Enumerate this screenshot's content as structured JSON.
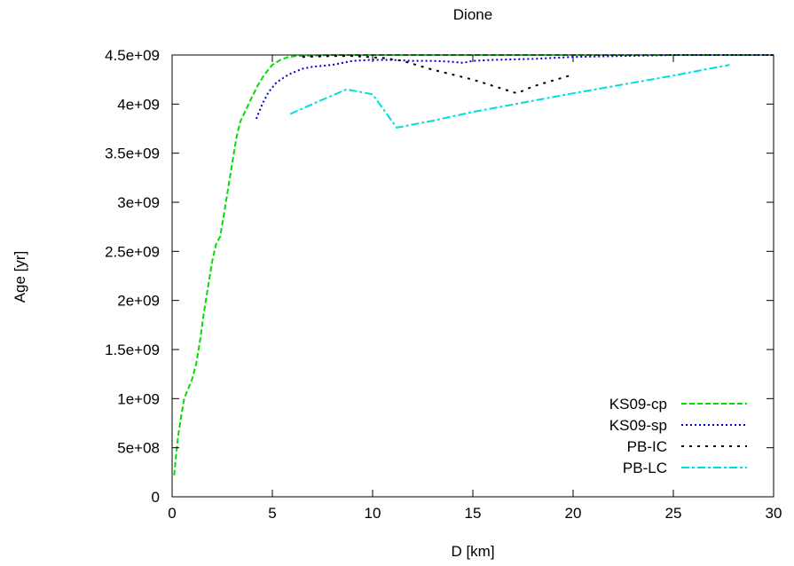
{
  "chart_data": {
    "type": "line",
    "title": "Dione",
    "xlabel": "D [km]",
    "ylabel": "Age [yr]",
    "xlim": [
      0,
      30
    ],
    "ylim": [
      0,
      4500000000
    ],
    "xticks": [
      0,
      5,
      10,
      15,
      20,
      25,
      30
    ],
    "yticks": [
      0,
      500000000,
      1000000000,
      1500000000,
      2000000000,
      2500000000,
      3000000000,
      3500000000,
      4000000000,
      4500000000
    ],
    "xtick_labels": [
      "0",
      "5",
      "10",
      "15",
      "20",
      "25",
      "30"
    ],
    "ytick_labels": [
      "0",
      "5e+08",
      "1e+09",
      "1.5e+09",
      "2e+09",
      "2.5e+09",
      "3e+09",
      "3.5e+09",
      "4e+09",
      "4.5e+09"
    ],
    "grid": false,
    "legend_position": "bottom-right",
    "series": [
      {
        "name": "KS09-cp",
        "color": "#00dd00",
        "dash": "dashed",
        "x": [
          0.1,
          0.2,
          0.3,
          0.45,
          0.6,
          0.8,
          1.0,
          1.2,
          1.4,
          1.6,
          1.8,
          2.0,
          2.2,
          2.4,
          2.6,
          2.8,
          3.0,
          3.2,
          3.4,
          3.7,
          4.0,
          4.3,
          4.6,
          5.0,
          5.4,
          5.8,
          6.2,
          7.0,
          8.0,
          10.0,
          15.0,
          20.0,
          25.0,
          30.0
        ],
        "y": [
          220000000,
          420000000,
          620000000,
          820000000,
          1000000000,
          1100000000,
          1200000000,
          1350000000,
          1600000000,
          1900000000,
          2150000000,
          2400000000,
          2580000000,
          2650000000,
          2900000000,
          3150000000,
          3400000000,
          3650000000,
          3820000000,
          3950000000,
          4080000000,
          4200000000,
          4300000000,
          4400000000,
          4450000000,
          4480000000,
          4490000000,
          4495000000,
          4500000000,
          4500000000,
          4500000000,
          4500000000,
          4500000000,
          4500000000
        ]
      },
      {
        "name": "KS09-sp",
        "color": "#0000dd",
        "dash": "dotted",
        "x": [
          4.2,
          4.5,
          4.8,
          5.2,
          5.8,
          6.5,
          7.0,
          8.0,
          8.5,
          9.0,
          10.0,
          11.0,
          12.0,
          13.0,
          14.0,
          14.5,
          15.0,
          16.0,
          18.0,
          20.0,
          25.0,
          30.0
        ],
        "y": [
          3850000000,
          4000000000,
          4120000000,
          4220000000,
          4300000000,
          4360000000,
          4380000000,
          4400000000,
          4420000000,
          4440000000,
          4450000000,
          4450000000,
          4440000000,
          4440000000,
          4430000000,
          4420000000,
          4440000000,
          4450000000,
          4460000000,
          4480000000,
          4500000000,
          4500000000
        ]
      },
      {
        "name": "PB-IC",
        "color": "#000000",
        "dash": "dashdot",
        "x": [
          6.5,
          8.0,
          9.0,
          10.5,
          11.5,
          13.0,
          15.0,
          17.2,
          18.0,
          20.0
        ],
        "y": [
          4480000000,
          4490000000,
          4490000000,
          4470000000,
          4440000000,
          4350000000,
          4250000000,
          4110000000,
          4180000000,
          4300000000
        ]
      },
      {
        "name": "PB-LC",
        "color": "#00dddd",
        "dash": "dashdotdot",
        "x": [
          5.9,
          7.0,
          8.7,
          10.0,
          11.2,
          13.0,
          15.0,
          20.0,
          25.0,
          27.8
        ],
        "y": [
          3900000000,
          4000000000,
          4150000000,
          4100000000,
          3760000000,
          3830000000,
          3920000000,
          4110000000,
          4290000000,
          4400000000
        ]
      }
    ]
  }
}
